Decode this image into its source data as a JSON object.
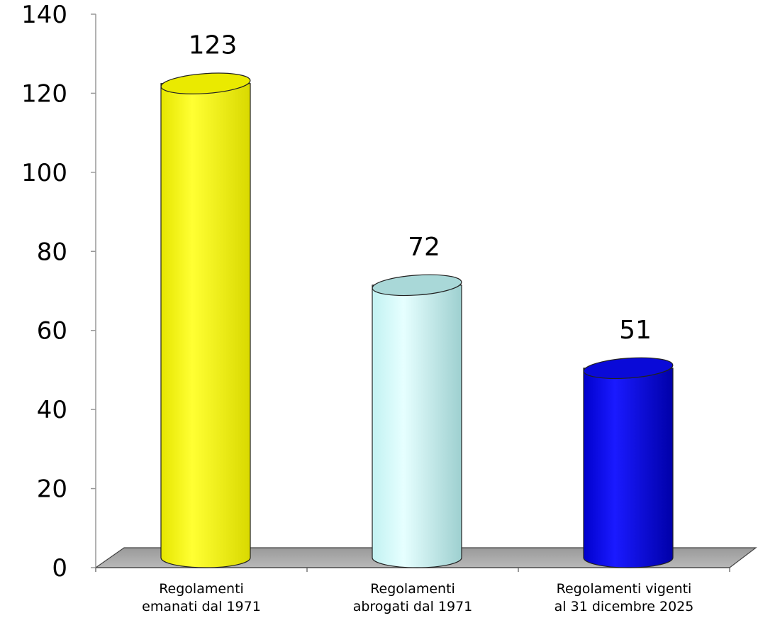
{
  "chart_data": {
    "type": "bar",
    "categories": [
      [
        "Regolamenti",
        "emanati dal 1971"
      ],
      [
        "Regolamenti",
        "abrogati dal 1971"
      ],
      [
        "Regolamenti vigenti",
        "al 31 dicembre 2025"
      ]
    ],
    "values": [
      123,
      72,
      51
    ],
    "data_labels": [
      "123",
      "72",
      "51"
    ],
    "ylim": [
      0,
      140
    ],
    "yticks": [
      0,
      20,
      40,
      60,
      80,
      100,
      120,
      140
    ],
    "colors": [
      "#ffff00",
      "#ccffff",
      "#0000ee"
    ],
    "shape": "cylinder",
    "floor_color": "#a6a6a6",
    "grid": false,
    "legend": "none"
  }
}
